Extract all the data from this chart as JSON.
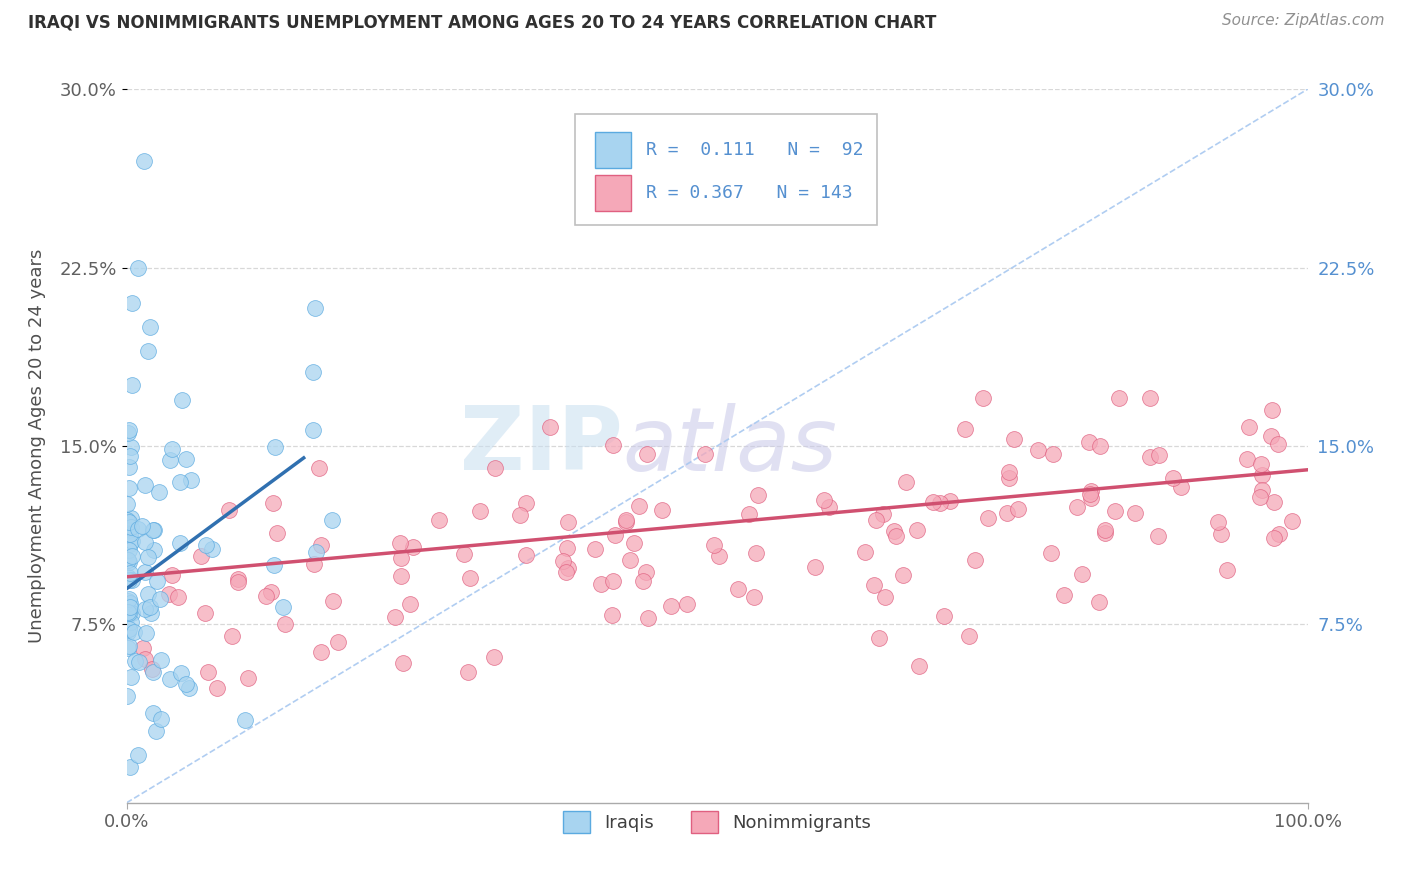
{
  "title": "IRAQI VS NONIMMIGRANTS UNEMPLOYMENT AMONG AGES 20 TO 24 YEARS CORRELATION CHART",
  "source": "Source: ZipAtlas.com",
  "ylabel": "Unemployment Among Ages 20 to 24 years",
  "xlim": [
    0,
    100
  ],
  "ylim": [
    0,
    30
  ],
  "yticks": [
    7.5,
    15.0,
    22.5,
    30.0
  ],
  "ytick_labels_left": [
    "7.5%",
    "15.0%",
    "22.5%",
    "30.0%"
  ],
  "ytick_labels_right": [
    "7.5%",
    "15.0%",
    "22.5%",
    "30.0%"
  ],
  "xtick_left": "0.0%",
  "xtick_right": "100.0%",
  "legend_R1": "0.111",
  "legend_N1": "92",
  "legend_R2": "0.367",
  "legend_N2": "143",
  "color_iraqi_fill": "#a8d4f0",
  "color_iraqi_edge": "#5baae0",
  "color_nonimm_fill": "#f5a8b8",
  "color_nonimm_edge": "#e06080",
  "color_trend_iraqi": "#3070b0",
  "color_trend_nonimm": "#d05070",
  "color_diagonal": "#a8c8f0",
  "color_raxis": "#5590d0",
  "watermark_zip": "ZIP",
  "watermark_atlas": "atlas",
  "background_color": "#ffffff",
  "grid_color": "#d8d8d8",
  "title_color": "#303030",
  "ylabel_color": "#505050",
  "source_color": "#909090",
  "legend_border": "#c0c0c0"
}
